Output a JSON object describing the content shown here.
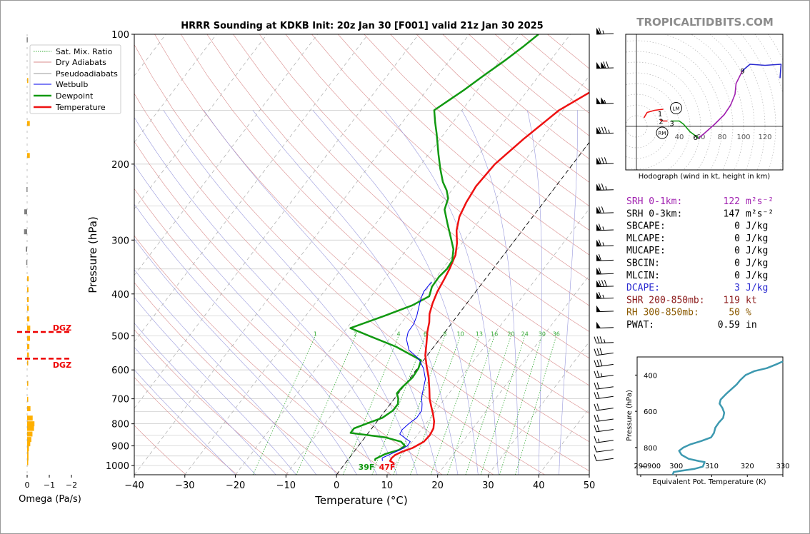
{
  "figure": {
    "title": "HRRR Sounding at KDKB Init: 20z Jan 30 [F001] valid 21z Jan 30 2025",
    "watermark": "TROPICALTIDBITS.COM",
    "colors": {
      "temperature": "#ee1111",
      "dewpoint": "#119911",
      "wetbulb": "#0000ee",
      "dry_adiabat": "#d98b8b",
      "moist_adiabat": "#9999dd",
      "mixing_ratio": "#33aa33",
      "omega_up": "#ffb000",
      "omega_down": "#808080",
      "dgz": "#ee0000",
      "srh1": "#a020b0",
      "dcape": "#2a2ad0",
      "shr": "#8b1a1a",
      "rh": "#8b5a00",
      "theta_e": "#3d99b0"
    }
  },
  "chart_data": [
    {
      "type": "line",
      "name": "skewt",
      "xlabel": "Temperature (°C)",
      "ylabel": "Pressure (hPa)",
      "xlim": [
        -40,
        50
      ],
      "ylim": [
        1050,
        100
      ],
      "y_scale": "log",
      "x_ticks": [
        "−40",
        "−30",
        "−20",
        "−10",
        "0",
        "10",
        "20",
        "30",
        "40",
        "50"
      ],
      "y_ticks": [
        "100",
        "200",
        "300",
        "400",
        "500",
        "600",
        "700",
        "800",
        "900",
        "1000"
      ],
      "legend_position": "top-left",
      "legend": [
        "Sat. Mix. Ratio",
        "Dry Adiabats",
        "Pseudoadiabats",
        "Wetbulb",
        "Dewpoint",
        "Temperature"
      ],
      "series": [
        {
          "name": "Temperature",
          "points": [
            [
              9.8,
              990
            ],
            [
              8.5,
              975
            ],
            [
              8.4,
              960
            ],
            [
              8.6,
              945
            ],
            [
              9.4,
              930
            ],
            [
              11,
              910
            ],
            [
              12.3,
              880
            ],
            [
              12.5,
              850
            ],
            [
              12.2,
              820
            ],
            [
              11.3,
              790
            ],
            [
              10,
              760
            ],
            [
              8.5,
              730
            ],
            [
              7,
              700
            ],
            [
              5.5,
              665
            ],
            [
              3.6,
              625
            ],
            [
              1.6,
              590
            ],
            [
              -0.4,
              555
            ],
            [
              -2,
              520
            ],
            [
              -3.5,
              490
            ],
            [
              -4.6,
              465
            ],
            [
              -5.8,
              445
            ],
            [
              -6.8,
              420
            ],
            [
              -7.6,
              395
            ],
            [
              -8.1,
              370
            ],
            [
              -8.6,
              350
            ],
            [
              -9.5,
              325
            ],
            [
              -11,
              305
            ],
            [
              -13,
              285
            ],
            [
              -14.5,
              265
            ],
            [
              -15.3,
              245
            ],
            [
              -15.8,
              225
            ],
            [
              -15.4,
              200
            ],
            [
              -13.5,
              175
            ],
            [
              -10.8,
              150
            ],
            [
              -6.3,
              132
            ],
            [
              -3.4,
              115
            ],
            [
              -0.5,
              104
            ],
            [
              1.7,
              99.5
            ]
          ]
        },
        {
          "name": "Dewpoint",
          "points": [
            [
              5.5,
              975
            ],
            [
              5.3,
              965
            ],
            [
              6.5,
              940
            ],
            [
              8.6,
              920
            ],
            [
              9.2,
              900
            ],
            [
              7.8,
              880
            ],
            [
              4,
              860
            ],
            [
              -3.5,
              840
            ],
            [
              -3.5,
              820
            ],
            [
              -1.8,
              800
            ],
            [
              0.5,
              775
            ],
            [
              1.5,
              745
            ],
            [
              1.5,
              720
            ],
            [
              0.8,
              700
            ],
            [
              -0.3,
              680
            ],
            [
              -0.2,
              660
            ],
            [
              0.4,
              625
            ],
            [
              0.2,
              595
            ],
            [
              -0.5,
              570
            ],
            [
              -7.5,
              530
            ],
            [
              -14.5,
              500
            ],
            [
              -19.3,
              480
            ],
            [
              -14.5,
              450
            ],
            [
              -10.5,
              425
            ],
            [
              -8.5,
              405
            ],
            [
              -9.4,
              385
            ],
            [
              -9.5,
              365
            ],
            [
              -9.1,
              350
            ],
            [
              -9.3,
              335
            ],
            [
              -10.8,
              315
            ],
            [
              -13.2,
              295
            ],
            [
              -15.8,
              275
            ],
            [
              -18.5,
              255
            ],
            [
              -19.5,
              240
            ],
            [
              -21,
              230
            ],
            [
              -23,
              220
            ],
            [
              -25.5,
              205
            ],
            [
              -28,
              190
            ],
            [
              -31.5,
              170
            ],
            [
              -33.5,
              160
            ],
            [
              -35.5,
              150
            ],
            [
              -32.7,
              135
            ],
            [
              -31,
              125
            ],
            [
              -29,
              115
            ],
            [
              -27.5,
              107
            ],
            [
              -26.3,
              100
            ]
          ]
        },
        {
          "name": "Wetbulb",
          "points": [
            [
              7,
              975
            ],
            [
              6.5,
              960
            ],
            [
              7.3,
              945
            ],
            [
              8.8,
              920
            ],
            [
              9.7,
              900
            ],
            [
              9.6,
              880
            ],
            [
              8.2,
              865
            ],
            [
              6.4,
              845
            ],
            [
              6.2,
              825
            ],
            [
              6.6,
              800
            ],
            [
              7.3,
              775
            ],
            [
              7.2,
              745
            ],
            [
              6.3,
              720
            ],
            [
              5.2,
              695
            ],
            [
              4.3,
              665
            ],
            [
              3.2,
              630
            ],
            [
              1.2,
              595
            ],
            [
              -1.2,
              565
            ],
            [
              -4.4,
              540
            ],
            [
              -6.5,
              510
            ],
            [
              -7.3,
              490
            ],
            [
              -7.4,
              470
            ],
            [
              -8,
              450
            ],
            [
              -8.9,
              430
            ],
            [
              -9.8,
              410
            ],
            [
              -10.3,
              395
            ],
            [
              -10.2,
              375
            ]
          ]
        }
      ],
      "surface_labels": [
        "39F",
        "47F"
      ],
      "mixing_ratio_labels": [
        "1",
        "2",
        "4",
        "6",
        "8",
        "10",
        "13",
        "16",
        "20",
        "24",
        "30",
        "36"
      ]
    },
    {
      "type": "bar",
      "name": "omega",
      "xlabel": "Omega (Pa/s)",
      "xlim": [
        0,
        -2
      ],
      "x_ticks": [
        "0",
        "−1",
        "−2"
      ],
      "orientation": "horizontal",
      "bars": [
        [
          103,
          0.02
        ],
        [
          128,
          -0.05
        ],
        [
          161,
          -0.12
        ],
        [
          191,
          -0.12
        ],
        [
          229,
          0.03
        ],
        [
          258,
          0.13
        ],
        [
          287,
          0.14
        ],
        [
          315,
          0.06
        ],
        [
          338,
          0.04
        ],
        [
          369,
          -0.07
        ],
        [
          391,
          -0.06
        ],
        [
          412,
          -0.07
        ],
        [
          432,
          -0.07
        ],
        [
          457,
          -0.1
        ],
        [
          480,
          -0.14
        ],
        [
          507,
          -0.13
        ],
        [
          530,
          -0.1
        ],
        [
          554,
          -0.08
        ],
        [
          578,
          -0.02
        ],
        [
          645,
          -0.05
        ],
        [
          702,
          -0.03
        ],
        [
          738,
          -0.15
        ],
        [
          776,
          -0.25
        ],
        [
          800,
          -0.33
        ],
        [
          820,
          -0.31
        ],
        [
          845,
          -0.24
        ],
        [
          870,
          -0.19
        ],
        [
          890,
          -0.14
        ],
        [
          913,
          -0.08
        ],
        [
          935,
          -0.06
        ],
        [
          960,
          -0.06
        ],
        [
          985,
          -0.04
        ]
      ],
      "dgz_label": "DGZ",
      "dgz_levels": [
        490,
        565
      ]
    },
    {
      "type": "line",
      "name": "hodograph",
      "xlabel": "Hodograph (wind in kt, height in km)",
      "x_ticks": [
        "40",
        "60",
        "80",
        "100",
        "120"
      ],
      "height_labels": [
        {
          "text": "1",
          "u": 22,
          "v": 12
        },
        {
          "text": "2",
          "u": 23,
          "v": 5
        },
        {
          "text": "3",
          "u": 33,
          "v": 3
        },
        {
          "text": "6",
          "u": 55,
          "v": -10
        },
        {
          "text": "9",
          "u": 99,
          "v": 52
        }
      ],
      "storm_motion_labels": [
        {
          "text": "LM",
          "u": 37,
          "v": 17
        },
        {
          "text": "RM",
          "u": 24,
          "v": -6
        }
      ],
      "segments": [
        {
          "color": "#ee1111",
          "points": [
            [
              7,
              8
            ],
            [
              10,
              13
            ],
            [
              17,
              15
            ],
            [
              25,
              16
            ]
          ]
        },
        {
          "color": "#ee1111",
          "points": [
            [
              22,
              6
            ],
            [
              25,
              5
            ],
            [
              29,
              5
            ]
          ]
        },
        {
          "color": "#119911",
          "points": [
            [
              32,
              5
            ],
            [
              40,
              5
            ],
            [
              44,
              2
            ],
            [
              50,
              -5
            ],
            [
              58,
              -11
            ]
          ]
        },
        {
          "color": "#a020b0",
          "points": [
            [
              58,
              -11
            ],
            [
              64,
              -6
            ],
            [
              73,
              2
            ],
            [
              82,
              11
            ],
            [
              88,
              20
            ],
            [
              92,
              30
            ],
            [
              93,
              40
            ],
            [
              96,
              46
            ],
            [
              99,
              52
            ]
          ]
        },
        {
          "color": "#2a2ad0",
          "points": [
            [
              99,
              52
            ],
            [
              106,
              58
            ],
            [
              120,
              57
            ],
            [
              135,
              58
            ],
            [
              134,
              45
            ]
          ]
        }
      ]
    },
    {
      "type": "line",
      "name": "theta_e",
      "xlabel": "Equivalent Pot. Temperature (K)",
      "ylabel": "Pressure (hPa)",
      "xlim": [
        289,
        330
      ],
      "ylim": [
        950,
        300
      ],
      "x_ticks": [
        "290",
        "300",
        "310",
        "320",
        "330"
      ],
      "y_ticks": [
        "400",
        "600",
        "800",
        "—900"
      ],
      "points": [
        [
          299,
          950
        ],
        [
          299.3,
          935
        ],
        [
          301.5,
          928
        ],
        [
          305,
          918
        ],
        [
          307.5,
          905
        ],
        [
          308,
          880
        ],
        [
          306.5,
          875
        ],
        [
          303.5,
          862
        ],
        [
          301.5,
          840
        ],
        [
          300.8,
          818
        ],
        [
          302,
          800
        ],
        [
          304,
          782
        ],
        [
          307,
          764
        ],
        [
          309.8,
          744
        ],
        [
          310.6,
          720
        ],
        [
          311,
          690
        ],
        [
          312,
          662
        ],
        [
          313.2,
          636
        ],
        [
          313.5,
          608
        ],
        [
          313,
          582
        ],
        [
          312.2,
          558
        ],
        [
          312.5,
          535
        ],
        [
          314,
          505
        ],
        [
          315.5,
          478
        ],
        [
          317,
          452
        ],
        [
          318,
          428
        ],
        [
          319.5,
          400
        ],
        [
          322,
          378
        ],
        [
          325.5,
          362
        ],
        [
          328,
          342
        ],
        [
          330,
          325
        ]
      ]
    }
  ],
  "barbs": [
    {
      "p": 100,
      "kt": 65
    },
    {
      "p": 120,
      "kt": 120
    },
    {
      "p": 145,
      "kt": 105
    },
    {
      "p": 170,
      "kt": 85
    },
    {
      "p": 200,
      "kt": 80
    },
    {
      "p": 230,
      "kt": 75
    },
    {
      "p": 260,
      "kt": 70
    },
    {
      "p": 285,
      "kt": 65
    },
    {
      "p": 310,
      "kt": 65
    },
    {
      "p": 335,
      "kt": 60
    },
    {
      "p": 360,
      "kt": 60
    },
    {
      "p": 385,
      "kt": 80
    },
    {
      "p": 410,
      "kt": 65
    },
    {
      "p": 440,
      "kt": 50
    },
    {
      "p": 480,
      "kt": 50
    },
    {
      "p": 520,
      "kt": 35
    },
    {
      "p": 555,
      "kt": 30
    },
    {
      "p": 590,
      "kt": 30
    },
    {
      "p": 625,
      "kt": 25
    },
    {
      "p": 665,
      "kt": 20
    },
    {
      "p": 700,
      "kt": 20
    },
    {
      "p": 745,
      "kt": 20
    },
    {
      "p": 790,
      "kt": 20
    },
    {
      "p": 835,
      "kt": 20
    },
    {
      "p": 885,
      "kt": 15
    },
    {
      "p": 930,
      "kt": 10
    },
    {
      "p": 975,
      "kt": 10
    }
  ],
  "stats": [
    {
      "label": "SRH 0-1km:",
      "value": "122",
      "unit": "m²s⁻²",
      "color": "#a020b0"
    },
    {
      "label": "SRH 0-3km:",
      "value": "147",
      "unit": "m²s⁻²",
      "color": "#000000"
    },
    {
      "label": "SBCAPE:",
      "value": "0",
      "unit": "J/kg",
      "color": "#000000"
    },
    {
      "label": "MLCAPE:",
      "value": "0",
      "unit": "J/kg",
      "color": "#000000"
    },
    {
      "label": "MUCAPE:",
      "value": "0",
      "unit": "J/kg",
      "color": "#000000"
    },
    {
      "label": "SBCIN:",
      "value": "0",
      "unit": "J/kg",
      "color": "#000000"
    },
    {
      "label": "MLCIN:",
      "value": "0",
      "unit": "J/kg",
      "color": "#000000"
    },
    {
      "label": "DCAPE:",
      "value": "3",
      "unit": "J/kg",
      "color": "#2a2ad0"
    },
    {
      "label": "SHR 200-850mb:",
      "value": "119",
      "unit": "kt",
      "color": "#8b1a1a"
    },
    {
      "label": "RH 300-850mb:",
      "value": "50",
      "unit": "%",
      "color": "#8b5a00"
    },
    {
      "label": "PWAT:",
      "value": "0.59",
      "unit": "in",
      "color": "#000000"
    }
  ]
}
